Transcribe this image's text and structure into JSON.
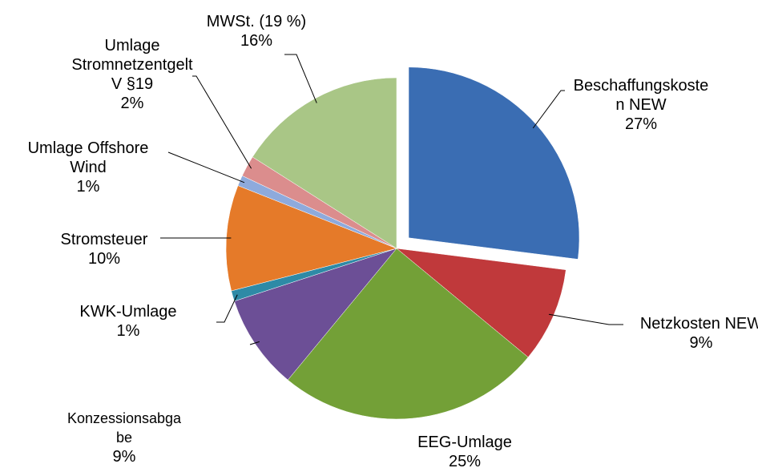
{
  "chart_data": {
    "type": "pie",
    "categories": [
      "Beschaffungskosten NEW",
      "Netzkosten NEW",
      "EEG-Umlage",
      "Konzessionsabgabe",
      "KWK-Umlage",
      "Stromsteuer",
      "Umlage Offshore Wind",
      "Umlage Stromnetzentgelt V §19",
      "MWSt. (19 %)"
    ],
    "values": [
      27,
      9,
      25,
      9,
      1,
      10,
      1,
      2,
      16
    ],
    "value_labels": [
      "27%",
      "9%",
      "25%",
      "9%",
      "1%",
      "10%",
      "1%",
      "2%",
      "16%"
    ],
    "colors": [
      "#3a6db3",
      "#c0393b",
      "#73a037",
      "#6c4f96",
      "#2e8aa6",
      "#e57a29",
      "#8eaadc",
      "#db8d8d",
      "#a9c686"
    ],
    "exploded": [
      0
    ]
  }
}
